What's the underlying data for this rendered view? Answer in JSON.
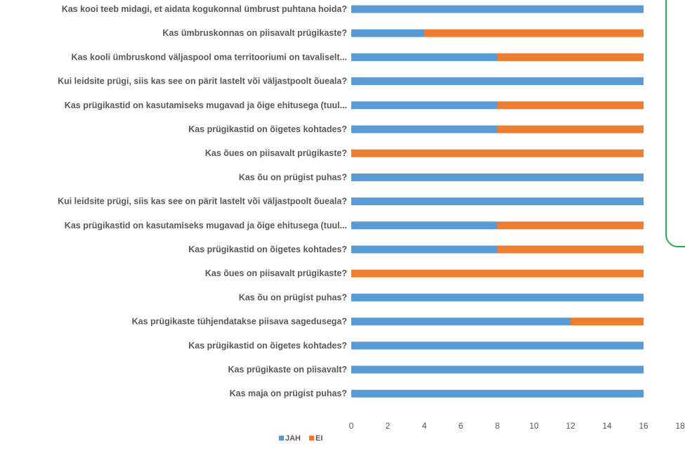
{
  "chart_data": {
    "type": "bar",
    "orientation": "horizontal",
    "stacked": true,
    "categories": [
      "Kas kooi teeb midagi, et aidata kogukonnal ümbrust puhtana hoida?",
      "Kas ümbruskonnas on piisavalt prügikaste?",
      "Kas kooli ümbruskond väljaspool oma territooriumi on tavaliselt...",
      "Kui leidsite prügi, siis kas see on pärit lastelt või väljastpoolt õueala?",
      "Kas prügikastid on kasutamiseks mugavad ja õige ehitusega (tuul...",
      "Kas prügikastid on õigetes kohtades?",
      "Kas õues on piisavalt prügikaste?",
      "Kas õu on prügist puhas?",
      "Kui leidsite prügi, siis kas see on pärit lastelt või väljastpoolt õueala?",
      "Kas prügikastid on kasutamiseks mugavad ja õige ehitusega (tuul...",
      "Kas prügikastid on õigetes kohtades?",
      "Kas õues on piisavalt prügikaste?",
      "Kas õu on prügist puhas?",
      "Kas prügikaste tühjendatakse piisava sagedusega?",
      "Kas prügikastid on õigetes kohtades?",
      "Kas prügikaste on piisavalt?",
      "Kas maja on prügist puhas?"
    ],
    "series": [
      {
        "name": "JAH",
        "color": "#5b9bd5",
        "values": [
          16,
          4,
          8,
          16,
          8,
          8,
          0,
          16,
          16,
          8,
          8,
          0,
          16,
          12,
          16,
          16,
          16
        ]
      },
      {
        "name": "EI",
        "color": "#ed7d31",
        "values": [
          0,
          12,
          8,
          0,
          8,
          8,
          16,
          0,
          0,
          8,
          8,
          16,
          0,
          4,
          0,
          0,
          0
        ]
      }
    ],
    "xlim": [
      0,
      18
    ],
    "xticks": [
      "0",
      "2",
      "4",
      "6",
      "8",
      "10",
      "12",
      "14",
      "16",
      "18"
    ],
    "legend_position": "bottom",
    "grid": false
  }
}
